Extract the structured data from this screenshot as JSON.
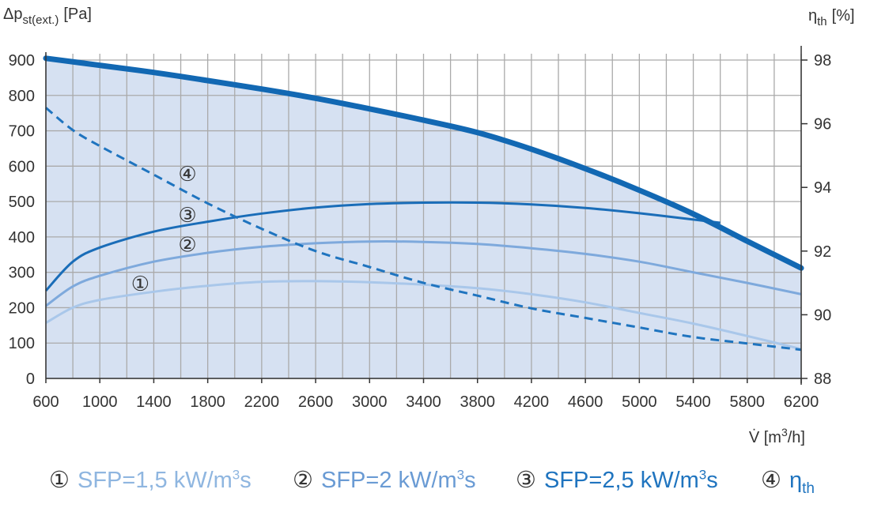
{
  "chart_data": {
    "type": "line",
    "left_axis_label": "Δp",
    "left_axis_label_sub": "st(ext.)",
    "left_axis_unit": "[Pa]",
    "right_axis_label": "η",
    "right_axis_label_sub": "th",
    "right_axis_unit": "[%]",
    "x_axis_label": "V̇ [m",
    "x_axis_label_sup": "3",
    "x_axis_label_end": "/h]",
    "xlim": [
      600,
      6200
    ],
    "ylim_left": [
      0,
      900
    ],
    "ylim_right": [
      88,
      98
    ],
    "x_ticks": [
      600,
      1000,
      1400,
      1800,
      2200,
      2600,
      3000,
      3400,
      3800,
      4200,
      4600,
      5000,
      5400,
      5800,
      6200
    ],
    "y_ticks_left": [
      0,
      100,
      200,
      300,
      400,
      500,
      600,
      700,
      800,
      900
    ],
    "y_ticks_right": [
      88,
      90,
      92,
      94,
      96,
      98
    ],
    "grid": true,
    "operating_envelope": {
      "x": [
        600,
        1000,
        1400,
        1800,
        2200,
        2600,
        3000,
        3400,
        3800,
        4200,
        4600,
        5000,
        5400,
        5800,
        6200
      ],
      "y": [
        905,
        885,
        865,
        842,
        818,
        792,
        762,
        730,
        695,
        648,
        593,
        532,
        465,
        388,
        312
      ]
    },
    "series": [
      {
        "marker": "①",
        "axis": "left",
        "x": [
          600,
          800,
          1000,
          1400,
          1800,
          2200,
          2600,
          3000,
          3400,
          3800,
          4200,
          4600,
          5000,
          5400,
          5800,
          6200
        ],
        "y": [
          157,
          200,
          222,
          245,
          262,
          273,
          275,
          272,
          265,
          255,
          238,
          215,
          185,
          155,
          120,
          83
        ]
      },
      {
        "marker": "②",
        "axis": "left",
        "x": [
          600,
          800,
          1000,
          1400,
          1800,
          2200,
          2600,
          3000,
          3400,
          3800,
          4200,
          4600,
          5000,
          5400,
          5800,
          6200
        ],
        "y": [
          205,
          260,
          290,
          330,
          355,
          372,
          382,
          387,
          386,
          380,
          368,
          352,
          330,
          300,
          270,
          238
        ]
      },
      {
        "marker": "③",
        "axis": "left",
        "x": [
          600,
          800,
          1000,
          1400,
          1800,
          2200,
          2600,
          3000,
          3400,
          3800,
          4200,
          4600,
          5000,
          5400,
          5600
        ],
        "y": [
          248,
          330,
          370,
          415,
          443,
          466,
          483,
          493,
          497,
          497,
          492,
          482,
          467,
          449,
          440
        ]
      },
      {
        "marker": "④",
        "axis": "right",
        "dashed": true,
        "x": [
          600,
          800,
          1000,
          1400,
          1800,
          2200,
          2600,
          3000,
          3400,
          3800,
          4200,
          4600,
          5000,
          5400,
          5800,
          6200
        ],
        "y": [
          96.5,
          95.8,
          95.3,
          94.4,
          93.5,
          92.7,
          92.0,
          91.5,
          91.0,
          90.6,
          90.2,
          89.9,
          89.6,
          89.3,
          89.1,
          88.9
        ]
      }
    ],
    "markers": [
      {
        "label": "④",
        "x": 1650,
        "y": 578
      },
      {
        "label": "③",
        "x": 1650,
        "y": 462
      },
      {
        "label": "②",
        "x": 1650,
        "y": 378
      },
      {
        "label": "①",
        "x": 1300,
        "y": 268
      }
    ]
  },
  "legend": [
    {
      "num": "①",
      "text": "SFP=1,5 kW/m",
      "sup": "3",
      "after": "s",
      "color": "#8fb6e0"
    },
    {
      "num": "②",
      "text": "SFP=2 kW/m",
      "sup": "3",
      "after": "s",
      "color": "#6a9bd4"
    },
    {
      "num": "③",
      "text": "SFP=2,5 kW/m",
      "sup": "3",
      "after": "s",
      "color": "#1f74bf"
    },
    {
      "num": "④",
      "text": "η",
      "sub": "th",
      "color": "#1f74bf"
    }
  ],
  "colors": {
    "fill": "#d6e1f2",
    "envelope": "#1268b3",
    "series": [
      "#a9c7ea",
      "#7ea9dc",
      "#1a6db8",
      "#1f74bf"
    ],
    "grid": "#aaaaaa"
  }
}
